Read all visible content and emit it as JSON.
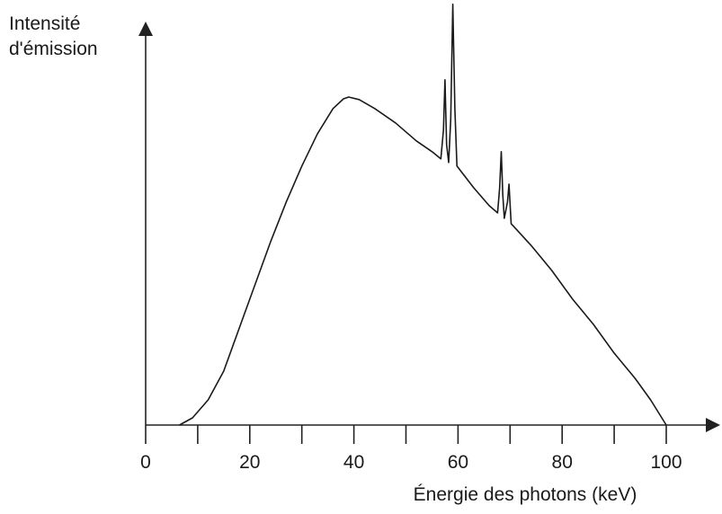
{
  "chart_data": {
    "type": "line",
    "title": "",
    "ylabel_lines": [
      "Intensité",
      "d'émission"
    ],
    "xlabel": "Énergie des photons (keV)",
    "xlim": [
      0,
      105
    ],
    "ylim": [
      0,
      1.0
    ],
    "x_ticks_major": [
      0,
      20,
      40,
      60,
      80,
      100
    ],
    "x_tick_labels": [
      "0",
      "20",
      "40",
      "60",
      "80",
      "100"
    ],
    "x_ticks_minor": [
      10,
      30,
      50,
      70,
      90
    ],
    "grid": false,
    "y_ticks": [],
    "series": [
      {
        "values_note_free": true,
        "points": [
          [
            6.5,
            0.0
          ],
          [
            9,
            0.02
          ],
          [
            12,
            0.07
          ],
          [
            15,
            0.15
          ],
          [
            18,
            0.27
          ],
          [
            21,
            0.39
          ],
          [
            24,
            0.51
          ],
          [
            27,
            0.62
          ],
          [
            30,
            0.72
          ],
          [
            33,
            0.81
          ],
          [
            36,
            0.88
          ],
          [
            38,
            0.907
          ],
          [
            39,
            0.912
          ],
          [
            41,
            0.905
          ],
          [
            44,
            0.88
          ],
          [
            48,
            0.84
          ],
          [
            52,
            0.79
          ],
          [
            55,
            0.76
          ],
          [
            56.7,
            0.74
          ],
          [
            57.2,
            0.82
          ],
          [
            57.5,
            0.96
          ],
          [
            57.8,
            0.78
          ],
          [
            58.2,
            0.73
          ],
          [
            58.6,
            0.85
          ],
          [
            59.0,
            1.17
          ],
          [
            59.4,
            0.88
          ],
          [
            59.8,
            0.72
          ],
          [
            63,
            0.66
          ],
          [
            66,
            0.61
          ],
          [
            67.6,
            0.59
          ],
          [
            68.0,
            0.66
          ],
          [
            68.3,
            0.76
          ],
          [
            68.6,
            0.64
          ],
          [
            68.9,
            0.575
          ],
          [
            69.5,
            0.62
          ],
          [
            69.8,
            0.67
          ],
          [
            70.2,
            0.56
          ],
          [
            74,
            0.5
          ],
          [
            78,
            0.43
          ],
          [
            82,
            0.35
          ],
          [
            86,
            0.28
          ],
          [
            90,
            0.2
          ],
          [
            94,
            0.13
          ],
          [
            97,
            0.07
          ],
          [
            100,
            0.0
          ]
        ]
      }
    ]
  }
}
